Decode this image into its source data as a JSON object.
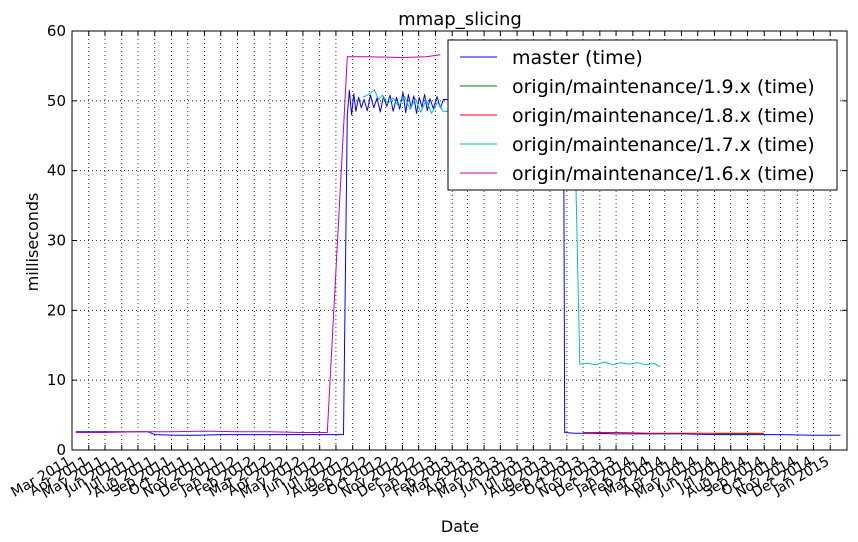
{
  "chart_data": {
    "type": "line",
    "title": "mmap_slicing",
    "xlabel": "Date",
    "ylabel": "milliseconds",
    "ylim": [
      0,
      60
    ],
    "yticks": [
      0,
      10,
      20,
      30,
      40,
      50,
      60
    ],
    "xlim": [
      "2011-03-01",
      "2015-02-01"
    ],
    "xticks": [
      {
        "date": "2011-03-01",
        "label": "Mar 2011"
      },
      {
        "date": "2011-04-01",
        "label": "Apr 2011"
      },
      {
        "date": "2011-05-01",
        "label": "May 2011"
      },
      {
        "date": "2011-06-01",
        "label": "Jun 2011"
      },
      {
        "date": "2011-07-01",
        "label": "Jul 2011"
      },
      {
        "date": "2011-08-01",
        "label": "Aug 2011"
      },
      {
        "date": "2011-09-01",
        "label": "Sep 2011"
      },
      {
        "date": "2011-10-01",
        "label": "Oct 2011"
      },
      {
        "date": "2011-11-01",
        "label": "Nov 2011"
      },
      {
        "date": "2011-12-01",
        "label": "Dec 2011"
      },
      {
        "date": "2012-01-01",
        "label": "Jan 2012"
      },
      {
        "date": "2012-02-01",
        "label": "Feb 2012"
      },
      {
        "date": "2012-03-01",
        "label": "Mar 2012"
      },
      {
        "date": "2012-04-01",
        "label": "Apr 2012"
      },
      {
        "date": "2012-05-01",
        "label": "May 2012"
      },
      {
        "date": "2012-06-01",
        "label": "Jun 2012"
      },
      {
        "date": "2012-07-01",
        "label": "Jul 2012"
      },
      {
        "date": "2012-08-01",
        "label": "Aug 2012"
      },
      {
        "date": "2012-09-01",
        "label": "Sep 2012"
      },
      {
        "date": "2012-10-01",
        "label": "Oct 2012"
      },
      {
        "date": "2012-11-01",
        "label": "Nov 2012"
      },
      {
        "date": "2012-12-01",
        "label": "Dec 2012"
      },
      {
        "date": "2013-01-01",
        "label": "Jan 2013"
      },
      {
        "date": "2013-02-01",
        "label": "Feb 2013"
      },
      {
        "date": "2013-03-01",
        "label": "Mar 2013"
      },
      {
        "date": "2013-04-01",
        "label": "Apr 2013"
      },
      {
        "date": "2013-05-01",
        "label": "May 2013"
      },
      {
        "date": "2013-06-01",
        "label": "Jun 2013"
      },
      {
        "date": "2013-07-01",
        "label": "Jul 2013"
      },
      {
        "date": "2013-08-01",
        "label": "Aug 2013"
      },
      {
        "date": "2013-09-01",
        "label": "Sep 2013"
      },
      {
        "date": "2013-10-01",
        "label": "Oct 2013"
      },
      {
        "date": "2013-11-01",
        "label": "Nov 2013"
      },
      {
        "date": "2013-12-01",
        "label": "Dec 2013"
      },
      {
        "date": "2014-01-01",
        "label": "Jan 2014"
      },
      {
        "date": "2014-02-01",
        "label": "Feb 2014"
      },
      {
        "date": "2014-03-01",
        "label": "Mar 2014"
      },
      {
        "date": "2014-04-01",
        "label": "Apr 2014"
      },
      {
        "date": "2014-05-01",
        "label": "May 2014"
      },
      {
        "date": "2014-06-01",
        "label": "Jun 2014"
      },
      {
        "date": "2014-07-01",
        "label": "Jul 2014"
      },
      {
        "date": "2014-08-01",
        "label": "Aug 2014"
      },
      {
        "date": "2014-09-01",
        "label": "Sep 2014"
      },
      {
        "date": "2014-10-01",
        "label": "Oct 2014"
      },
      {
        "date": "2014-11-01",
        "label": "Nov 2014"
      },
      {
        "date": "2014-12-01",
        "label": "Dec 2014"
      },
      {
        "date": "2015-01-01",
        "label": "Jan 2015"
      }
    ],
    "grid": true,
    "legend_position": "top-right",
    "series": [
      {
        "name": "master (time)",
        "color": "#0000ff",
        "points": [
          [
            "2011-03-08",
            2.6
          ],
          [
            "2011-04-15",
            2.6
          ],
          [
            "2011-05-20",
            2.6
          ],
          [
            "2011-06-20",
            2.6
          ],
          [
            "2011-07-20",
            2.6
          ],
          [
            "2011-08-01",
            2.2
          ],
          [
            "2011-09-10",
            2.1
          ],
          [
            "2011-10-20",
            2.1
          ],
          [
            "2011-12-01",
            2.2
          ],
          [
            "2012-01-15",
            2.2
          ],
          [
            "2012-03-01",
            2.2
          ],
          [
            "2012-05-01",
            2.2
          ],
          [
            "2012-06-20",
            2.2
          ],
          [
            "2012-07-15",
            2.2
          ],
          [
            "2012-07-22",
            48.0
          ],
          [
            "2012-07-26",
            51.5
          ],
          [
            "2012-07-30",
            48.0
          ],
          [
            "2012-08-03",
            51.0
          ],
          [
            "2012-08-07",
            48.5
          ],
          [
            "2012-08-12",
            50.5
          ],
          [
            "2012-08-17",
            49.0
          ],
          [
            "2012-08-22",
            50.2
          ],
          [
            "2012-08-28",
            48.6
          ],
          [
            "2012-09-03",
            50.8
          ],
          [
            "2012-09-09",
            49.0
          ],
          [
            "2012-09-15",
            50.4
          ],
          [
            "2012-09-21",
            48.4
          ],
          [
            "2012-09-27",
            50.6
          ],
          [
            "2012-10-03",
            49.2
          ],
          [
            "2012-10-09",
            50.8
          ],
          [
            "2012-10-15",
            48.5
          ],
          [
            "2012-10-21",
            50.5
          ],
          [
            "2012-10-27",
            48.8
          ],
          [
            "2012-11-02",
            51.2
          ],
          [
            "2012-11-07",
            48.3
          ],
          [
            "2012-11-12",
            50.9
          ],
          [
            "2012-11-17",
            49.0
          ],
          [
            "2012-11-22",
            50.7
          ],
          [
            "2012-11-27",
            48.2
          ],
          [
            "2012-12-02",
            50.5
          ],
          [
            "2012-12-07",
            49.1
          ],
          [
            "2012-12-12",
            50.9
          ],
          [
            "2012-12-17",
            48.6
          ],
          [
            "2012-12-22",
            50.3
          ],
          [
            "2012-12-28",
            48.9
          ],
          [
            "2013-01-04",
            50.6
          ],
          [
            "2013-01-10",
            49.0
          ],
          [
            "2013-01-16",
            50.2
          ],
          [
            "2013-08-26",
            49.5
          ],
          [
            "2013-08-28",
            2.5
          ],
          [
            "2013-09-15",
            2.4
          ],
          [
            "2013-10-15",
            2.4
          ],
          [
            "2013-12-01",
            2.3
          ],
          [
            "2014-02-01",
            2.3
          ],
          [
            "2014-04-01",
            2.3
          ],
          [
            "2014-06-01",
            2.2
          ],
          [
            "2014-08-01",
            2.2
          ],
          [
            "2014-10-01",
            2.2
          ],
          [
            "2014-12-01",
            2.1
          ],
          [
            "2015-01-20",
            2.1
          ]
        ]
      },
      {
        "name": "origin/maintenance/1.9.x (time)",
        "color": "#008000",
        "points": [
          [
            "2014-06-01",
            2.3
          ],
          [
            "2014-07-15",
            2.3
          ],
          [
            "2014-08-31",
            2.3
          ]
        ]
      },
      {
        "name": "origin/maintenance/1.8.x (time)",
        "color": "#ff0000",
        "points": [
          [
            "2013-10-01",
            2.5
          ],
          [
            "2013-12-01",
            2.5
          ],
          [
            "2014-02-01",
            2.4
          ],
          [
            "2014-04-01",
            2.4
          ],
          [
            "2014-06-01",
            2.4
          ],
          [
            "2014-08-31",
            2.4
          ]
        ]
      },
      {
        "name": "origin/maintenance/1.7.x (time)",
        "color": "#00bfbf",
        "points": [
          [
            "2012-08-20",
            50.5
          ],
          [
            "2012-09-01",
            51.0
          ],
          [
            "2012-09-10",
            51.6
          ],
          [
            "2012-09-18",
            50.2
          ],
          [
            "2012-09-25",
            50.8
          ],
          [
            "2012-10-05",
            49.6
          ],
          [
            "2012-10-15",
            50.4
          ],
          [
            "2012-10-25",
            49.2
          ],
          [
            "2012-11-05",
            50.6
          ],
          [
            "2012-11-15",
            48.8
          ],
          [
            "2012-11-25",
            50.3
          ],
          [
            "2012-12-05",
            48.4
          ],
          [
            "2012-12-15",
            50.1
          ],
          [
            "2012-12-25",
            48.2
          ],
          [
            "2013-01-05",
            49.8
          ],
          [
            "2013-01-15",
            48.5
          ],
          [
            "2013-09-15",
            48.0
          ],
          [
            "2013-09-25",
            12.3
          ],
          [
            "2013-10-10",
            12.4
          ],
          [
            "2013-10-25",
            12.2
          ],
          [
            "2013-11-10",
            12.6
          ],
          [
            "2013-11-25",
            12.2
          ],
          [
            "2013-12-10",
            12.5
          ],
          [
            "2013-12-25",
            12.3
          ],
          [
            "2014-01-10",
            12.5
          ],
          [
            "2014-01-25",
            12.2
          ],
          [
            "2014-02-10",
            12.4
          ],
          [
            "2014-02-20",
            11.9
          ]
        ]
      },
      {
        "name": "origin/maintenance/1.6.x (time)",
        "color": "#bf00bf",
        "points": [
          [
            "2011-03-08",
            2.5
          ],
          [
            "2011-05-01",
            2.5
          ],
          [
            "2011-07-01",
            2.6
          ],
          [
            "2011-09-01",
            2.6
          ],
          [
            "2011-11-01",
            2.7
          ],
          [
            "2012-01-01",
            2.6
          ],
          [
            "2012-03-01",
            2.6
          ],
          [
            "2012-05-01",
            2.5
          ],
          [
            "2012-06-15",
            2.5
          ],
          [
            "2012-07-15",
            46.0
          ],
          [
            "2012-07-22",
            56.3
          ],
          [
            "2012-09-01",
            56.3
          ],
          [
            "2012-11-01",
            56.2
          ],
          [
            "2012-12-15",
            56.3
          ],
          [
            "2013-01-10",
            56.6
          ]
        ]
      }
    ]
  }
}
